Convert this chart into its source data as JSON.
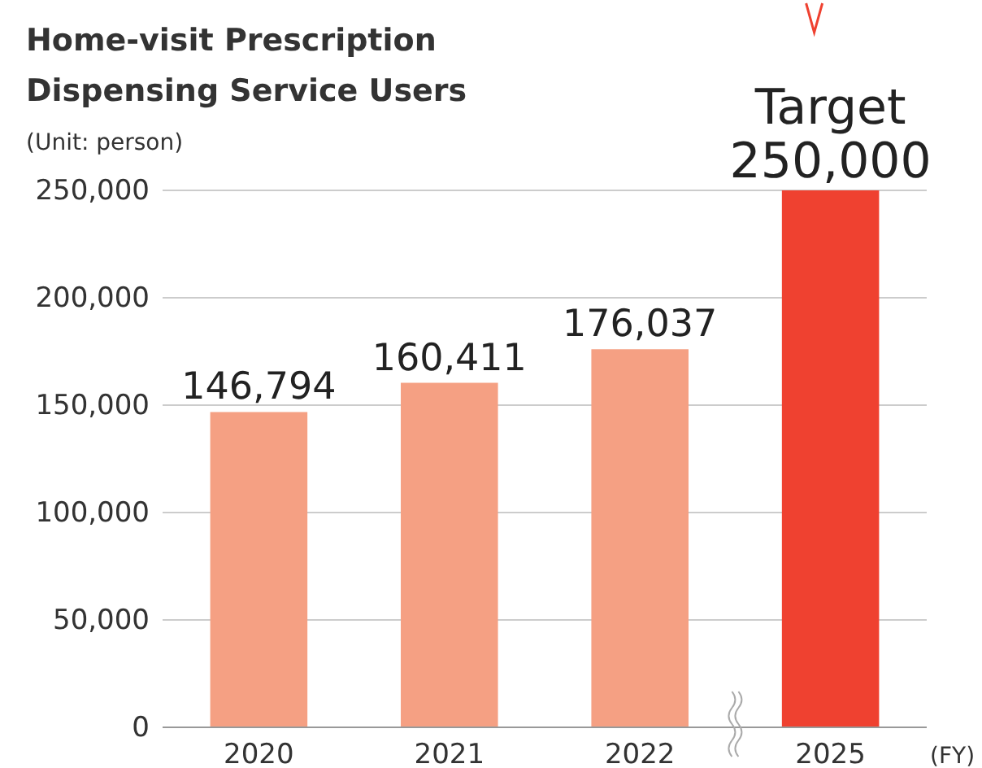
{
  "chart_data": {
    "type": "bar",
    "title": "Home-visit Prescription Dispensing Service Users",
    "subtitle": "(Unit: person)",
    "xlabel": "(FY)",
    "categories": [
      "2020",
      "2021",
      "2022",
      "2025"
    ],
    "values": [
      146794,
      160411,
      176037,
      250000
    ],
    "colors": [
      "#f5a083",
      "#f5a083",
      "#f5a083",
      "#ef4130"
    ],
    "value_labels": [
      "146,794",
      "160,411",
      "176,037",
      "Target\n250,000"
    ],
    "ylim": [
      0,
      250000
    ],
    "yticks": [
      {
        "value": 0,
        "label": "0"
      },
      {
        "value": 50000,
        "label": "50,000"
      },
      {
        "value": 100000,
        "label": "100,000"
      },
      {
        "value": 150000,
        "label": "150,000"
      },
      {
        "value": 200000,
        "label": "200,000"
      },
      {
        "value": 250000,
        "label": "250,000"
      }
    ],
    "grid": "y"
  }
}
